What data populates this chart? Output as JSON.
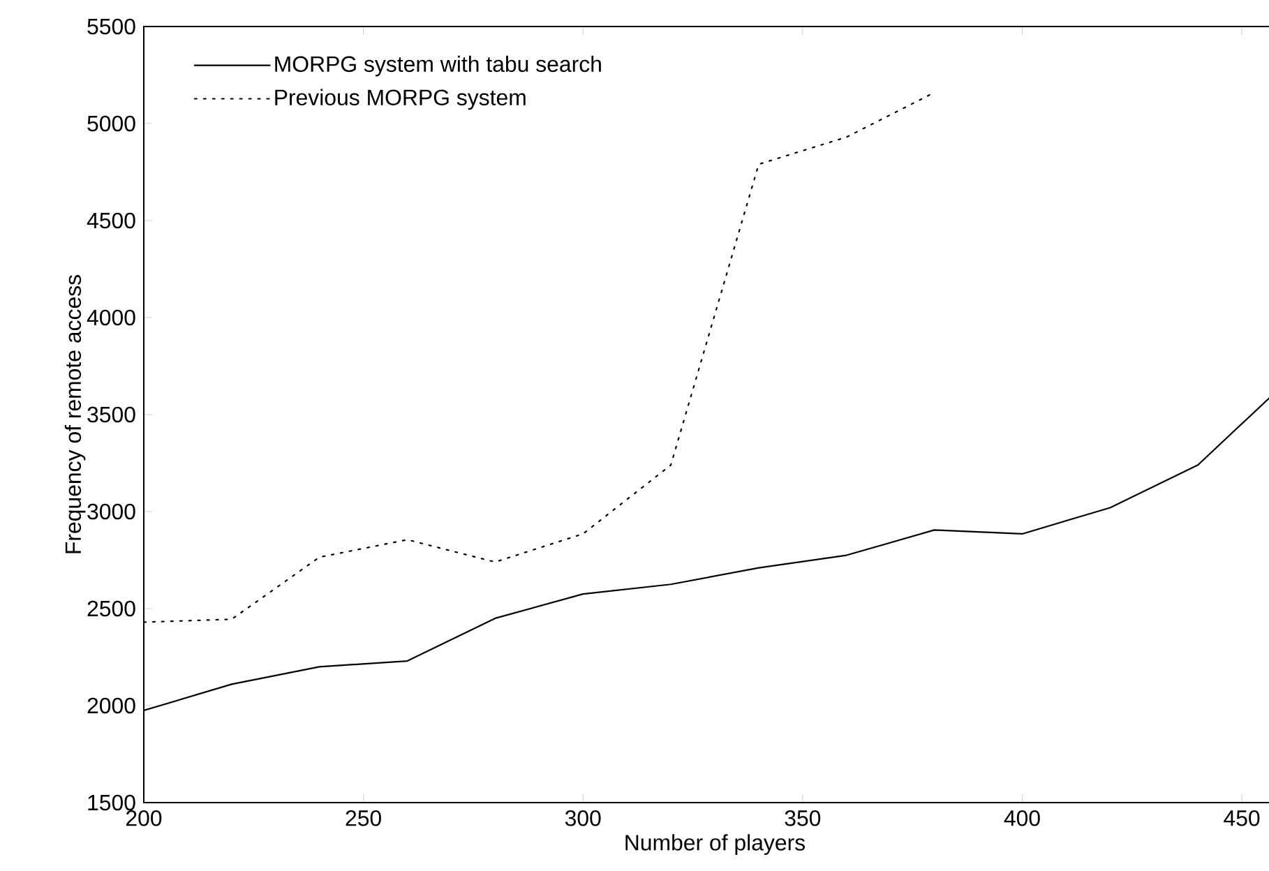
{
  "chart_data": {
    "type": "line",
    "xlabel": "Number of players",
    "ylabel": "Frequency of remote access",
    "x": [
      200,
      220,
      240,
      260,
      280,
      300,
      320,
      340,
      360,
      380,
      400,
      420,
      440,
      460
    ],
    "series": [
      {
        "name": "MORPG system with tabu search",
        "color": "#000000",
        "line_style": "solid",
        "values": [
          1975,
          2110,
          2200,
          2230,
          2450,
          2575,
          2625,
          2710,
          2775,
          2905,
          2885,
          3020,
          3240,
          3665
        ]
      },
      {
        "name": "Previous MORPG system",
        "color": "#000000",
        "line_style": "dotted",
        "values": [
          2430,
          2445,
          2765,
          2855,
          2740,
          2885,
          3240,
          4790,
          4930,
          5160,
          null,
          null,
          null,
          null
        ]
      }
    ],
    "xlim": [
      200,
      460
    ],
    "ylim": [
      1500,
      5500
    ],
    "xticks": [
      200,
      250,
      300,
      350,
      400,
      450
    ],
    "yticks": [
      1500,
      2000,
      2500,
      3000,
      3500,
      4000,
      4500,
      5000,
      5500
    ],
    "legend": "top left",
    "grid": false,
    "marker": "none"
  }
}
